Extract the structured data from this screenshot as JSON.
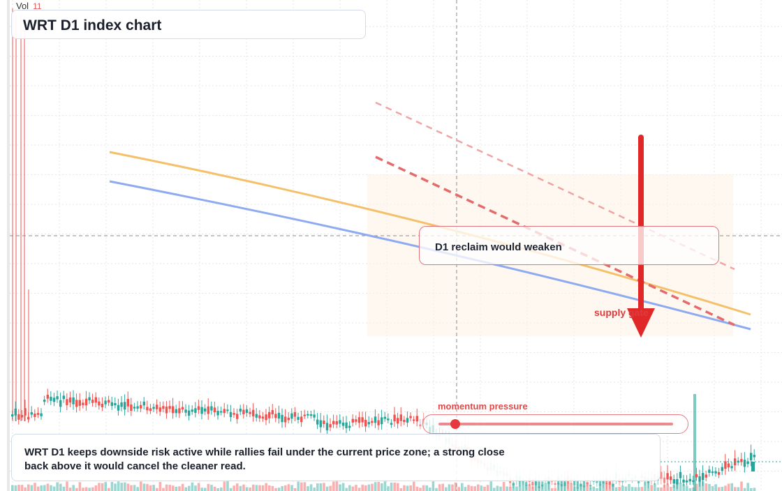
{
  "header": {
    "vol_label": "Vol",
    "vol_value": "11",
    "title": "WRT D1 index chart"
  },
  "annotations": {
    "callout": "D1 reclaim would weaken",
    "supply_label": "supply gate",
    "momentum_label": "momentum pressure",
    "momentum_level": 0.07,
    "summary": "WRT D1 keeps downside risk active while rallies fail under the current price zone; a strong close back above it would cancel the cleaner read."
  },
  "colors": {
    "up": "#26a69a",
    "down": "#ef5350",
    "ma_fast": "#f5c06a",
    "ma_slow": "#8eaaf0",
    "trend": "#e46b6b",
    "arrow": "#e02828",
    "grid": "#e6e6e6"
  },
  "chart_data": {
    "type": "candlestick",
    "title": "WRT D1 index chart",
    "grid": true,
    "note": "price axis and time axis labels are not visible"
  }
}
